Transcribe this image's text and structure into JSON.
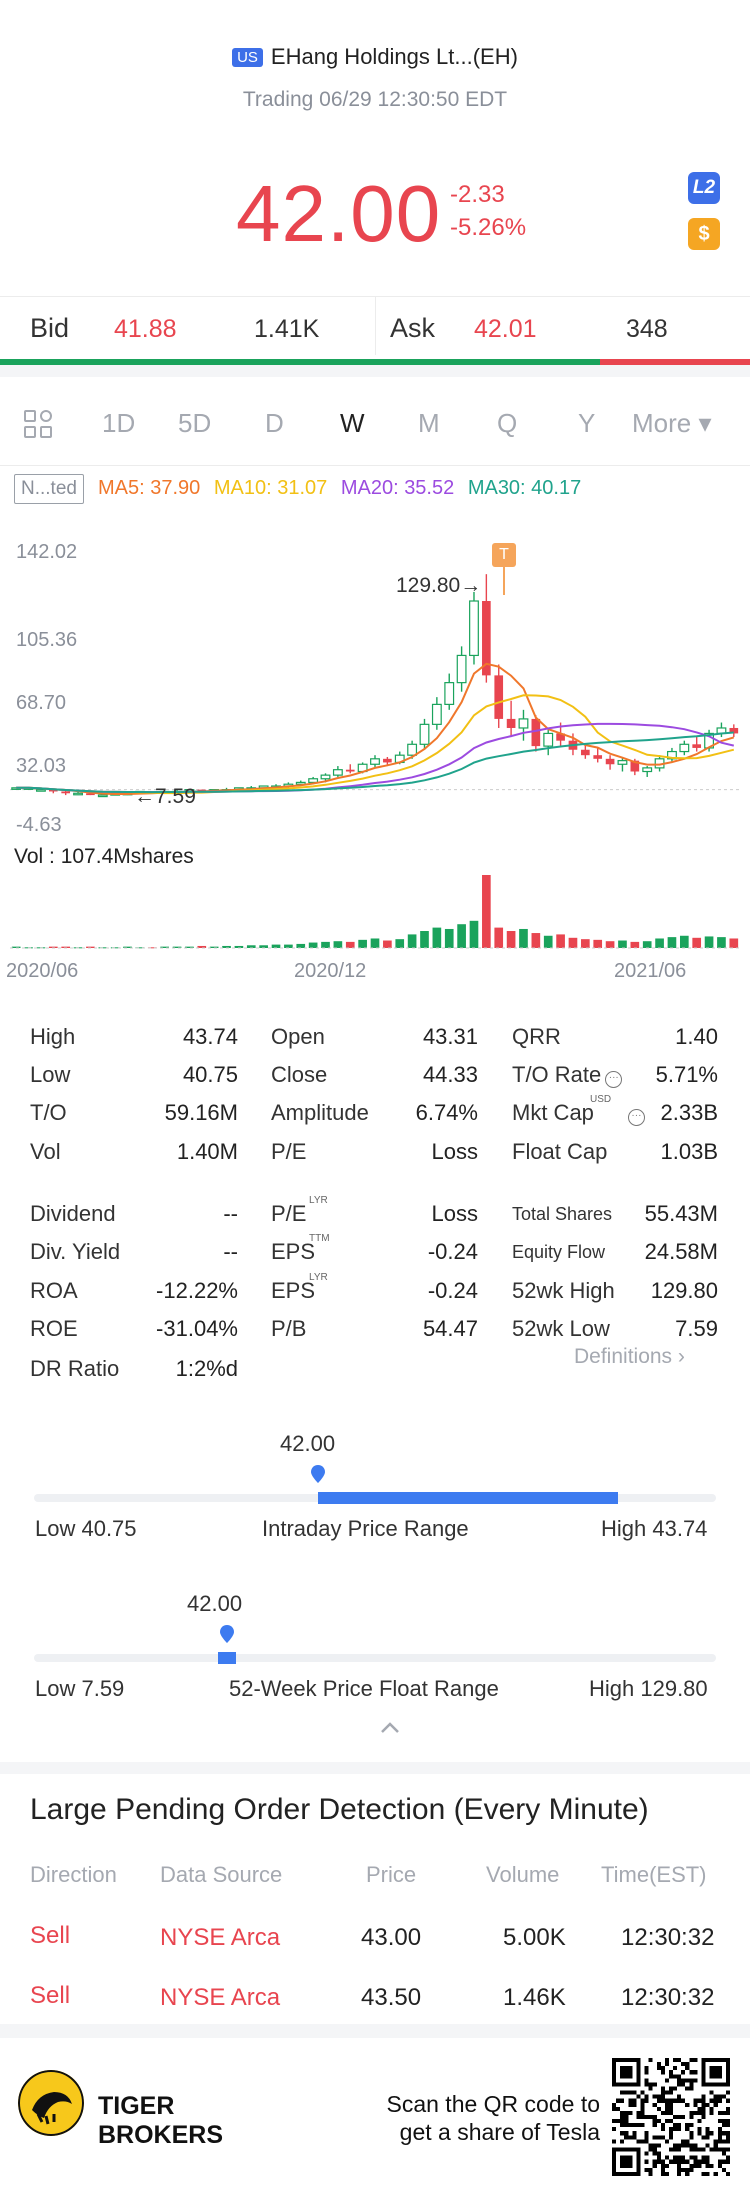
{
  "header": {
    "market_badge": "US",
    "title": "EHang Holdings Lt...(EH)",
    "subtitle": "Trading 06/29 12:30:50 EDT"
  },
  "quote": {
    "price": "42.00",
    "change": "-2.33",
    "change_pct": "-5.26%",
    "l2_badge": "L2",
    "dollar_badge": "$"
  },
  "bidask": {
    "bid_label": "Bid",
    "bid_price": "41.88",
    "bid_size": "1.41K",
    "ask_label": "Ask",
    "ask_price": "42.01",
    "ask_size": "348",
    "bid_share": 0.8
  },
  "tabs": [
    "1D",
    "5D",
    "D",
    "W",
    "M",
    "Q",
    "Y",
    "More ▾"
  ],
  "active_tab": "W",
  "ma": {
    "adjust": "N...ted",
    "ma5": "MA5: 37.90",
    "ma10": "MA10: 31.07",
    "ma20": "MA20: 35.52",
    "ma30": "MA30: 40.17"
  },
  "chart": {
    "y_ticks": [
      "142.02",
      "105.36",
      "68.70",
      "32.03",
      "-4.63"
    ],
    "max_label": "129.80→",
    "min_label": "←7.59",
    "t_marker": "T",
    "vol_label": "Vol  : 107.4Mshares",
    "x_labels": [
      "2020/06",
      "2020/12",
      "2021/06"
    ]
  },
  "chart_data": {
    "type": "candlestick",
    "title": "",
    "x_labels": [
      "2020/06",
      "2020/12",
      "2021/06"
    ],
    "ylim": [
      -4.63,
      142.02
    ],
    "y_ticks": [
      142.02,
      105.36,
      68.7,
      32.03,
      -4.63
    ],
    "period_high": 129.8,
    "period_low": 7.59,
    "volume_unit": "Mshares",
    "volume_max": 107.4,
    "moving_averages": {
      "MA5": 37.9,
      "MA10": 31.07,
      "MA20": 35.52,
      "MA30": 40.17
    },
    "candles": [
      [
        12,
        12,
        11,
        12
      ],
      [
        12,
        12,
        11,
        12
      ],
      [
        11,
        12,
        10,
        11
      ],
      [
        11,
        11,
        9,
        10
      ],
      [
        10,
        11,
        8,
        9
      ],
      [
        9,
        10,
        8,
        9
      ],
      [
        9,
        9,
        8,
        8
      ],
      [
        8,
        9,
        7.59,
        8
      ],
      [
        8,
        9,
        8,
        9
      ],
      [
        9,
        10,
        8,
        9
      ],
      [
        9,
        10,
        9,
        10
      ],
      [
        10,
        10,
        9,
        9
      ],
      [
        9,
        10,
        9,
        10
      ],
      [
        10,
        11,
        9,
        10
      ],
      [
        10,
        11,
        10,
        11
      ],
      [
        11,
        11,
        10,
        10
      ],
      [
        10,
        11,
        10,
        11
      ],
      [
        11,
        12,
        10,
        11
      ],
      [
        11,
        12,
        11,
        12
      ],
      [
        12,
        13,
        11,
        12
      ],
      [
        12,
        13,
        11,
        13
      ],
      [
        13,
        14,
        12,
        13
      ],
      [
        13,
        15,
        12,
        14
      ],
      [
        14,
        16,
        13,
        15
      ],
      [
        15,
        18,
        14,
        17
      ],
      [
        17,
        20,
        15,
        19
      ],
      [
        19,
        24,
        18,
        22
      ],
      [
        22,
        25,
        20,
        21
      ],
      [
        21,
        26,
        20,
        25
      ],
      [
        25,
        30,
        23,
        28
      ],
      [
        28,
        29,
        24,
        26
      ],
      [
        26,
        32,
        25,
        30
      ],
      [
        30,
        38,
        28,
        36
      ],
      [
        36,
        50,
        33,
        47
      ],
      [
        47,
        62,
        44,
        58
      ],
      [
        58,
        75,
        55,
        70
      ],
      [
        70,
        90,
        65,
        85
      ],
      [
        85,
        120,
        80,
        115
      ],
      [
        115,
        129.8,
        70,
        74
      ],
      [
        74,
        80,
        45,
        50
      ],
      [
        50,
        60,
        40,
        45
      ],
      [
        45,
        55,
        38,
        50
      ],
      [
        50,
        52,
        32,
        35
      ],
      [
        35,
        45,
        30,
        42
      ],
      [
        42,
        48,
        35,
        38
      ],
      [
        38,
        42,
        30,
        33
      ],
      [
        33,
        36,
        28,
        30
      ],
      [
        30,
        34,
        26,
        28
      ],
      [
        28,
        30,
        22,
        25
      ],
      [
        25,
        29,
        21,
        27
      ],
      [
        27,
        28,
        19,
        21
      ],
      [
        21,
        24,
        18,
        23
      ],
      [
        23,
        30,
        21,
        28
      ],
      [
        28,
        34,
        26,
        32
      ],
      [
        32,
        38,
        30,
        36
      ],
      [
        36,
        40,
        32,
        34
      ],
      [
        34,
        44,
        32,
        42
      ],
      [
        42,
        48,
        40,
        45
      ],
      [
        45,
        47,
        40,
        42
      ]
    ],
    "volumes": [
      2,
      1,
      1,
      2,
      2,
      1,
      2,
      1,
      1,
      2,
      1,
      1,
      2,
      2,
      2,
      3,
      2,
      3,
      3,
      4,
      4,
      5,
      5,
      6,
      8,
      9,
      10,
      9,
      12,
      14,
      11,
      13,
      20,
      25,
      30,
      28,
      35,
      40,
      107.4,
      30,
      25,
      28,
      22,
      18,
      20,
      15,
      13,
      12,
      10,
      11,
      9,
      10,
      14,
      16,
      18,
      15,
      17,
      16,
      14
    ]
  },
  "stats": {
    "col1": [
      {
        "label": "High",
        "value": "43.74"
      },
      {
        "label": "Low",
        "value": "40.75"
      },
      {
        "label": "T/O",
        "value": "59.16M"
      },
      {
        "label": "Vol",
        "value": "1.40M"
      },
      {
        "label": "Dividend",
        "value": "--"
      },
      {
        "label": "Div. Yield",
        "value": "--"
      },
      {
        "label": "ROA",
        "value": "-12.22%"
      },
      {
        "label": "ROE",
        "value": "-31.04%"
      },
      {
        "label": "DR Ratio",
        "value": "1:2%d"
      }
    ],
    "col2": [
      {
        "label": "Open",
        "value": "43.31"
      },
      {
        "label": "Close",
        "value": "44.33"
      },
      {
        "label": "Amplitude",
        "value": "6.74%"
      },
      {
        "label": "P/E",
        "value": "Loss"
      },
      {
        "label": "P/E",
        "sup": "LYR",
        "value": "Loss"
      },
      {
        "label": "EPS",
        "sup": "TTM",
        "value": "-0.24"
      },
      {
        "label": "EPS",
        "sup": "LYR",
        "value": "-0.24"
      },
      {
        "label": "P/B",
        "value": "54.47"
      }
    ],
    "col3": [
      {
        "label": "QRR",
        "value": "1.40"
      },
      {
        "label": "T/O Rate",
        "value": "5.71%"
      },
      {
        "label": "Mkt Cap",
        "sup": "USD",
        "value": "2.33B"
      },
      {
        "label": "Float Cap",
        "value": "1.03B"
      },
      {
        "label": "Total Shares",
        "value": "55.43M"
      },
      {
        "label": "Equity Flow",
        "value": "24.58M"
      },
      {
        "label": "52wk High",
        "value": "129.80"
      },
      {
        "label": "52wk Low",
        "value": "7.59"
      }
    ],
    "definitions": "Definitions ›"
  },
  "intraday_range": {
    "current": "42.00",
    "low_label": "Low 40.75",
    "title": "Intraday Price Range",
    "high_label": "High 43.74",
    "position": 0.42
  },
  "week52_range": {
    "current": "42.00",
    "low_label": "Low 7.59",
    "title": "52-Week Price Float Range",
    "high_label": "High 129.80",
    "position": 0.28
  },
  "large_orders": {
    "title": "Large Pending Order Detection (Every Minute)",
    "headers": [
      "Direction",
      "Data Source",
      "Price",
      "Volume",
      "Time(EST)"
    ],
    "rows": [
      {
        "direction": "Sell",
        "source": "NYSE Arca",
        "price": "43.00",
        "volume": "5.00K",
        "time": "12:30:32"
      },
      {
        "direction": "Sell",
        "source": "NYSE Arca",
        "price": "43.50",
        "volume": "1.46K",
        "time": "12:30:32"
      }
    ]
  },
  "footer": {
    "brand_line1": "TIGER",
    "brand_line2": "BROKERS",
    "scan_line1": "Scan the QR code to",
    "scan_line2": "get a share of Tesla"
  },
  "colors": {
    "up": "#1aa35c",
    "down": "#e8454f",
    "accent": "#3d7bf0",
    "ma5": "#f0772b",
    "ma10": "#f2c014",
    "ma20": "#9c4be0",
    "ma30": "#20a38c"
  }
}
